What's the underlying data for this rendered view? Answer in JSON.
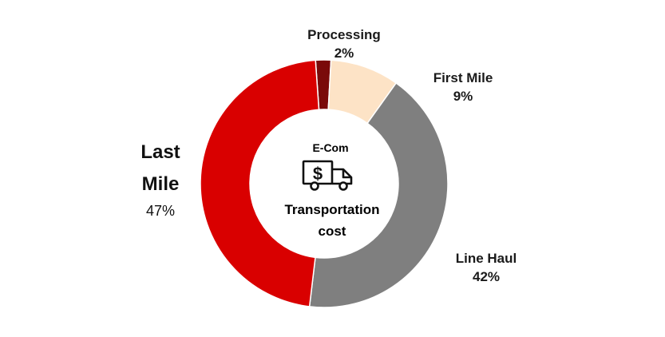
{
  "chart_data": {
    "type": "pie",
    "donut": true,
    "start_angle_deg": -4,
    "categories": [
      "Processing",
      "First Mile",
      "Line Haul",
      "Last Mile"
    ],
    "values": [
      2,
      9,
      42,
      47
    ],
    "value_labels": [
      "2%",
      "9%",
      "42%",
      "47%"
    ],
    "colors": [
      "#7a0a0a",
      "#fde3c6",
      "#7f7f7f",
      "#d90000"
    ],
    "center": {
      "top_text": "E-Com",
      "icon": "delivery-truck-dollar-icon",
      "line1": "Transportation",
      "line2": "cost"
    },
    "last_mile_label_lines": [
      "Last",
      "Mile"
    ]
  }
}
